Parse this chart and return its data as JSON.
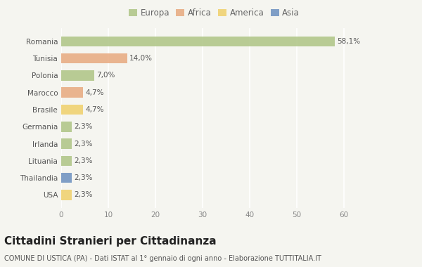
{
  "categories": [
    "Romania",
    "Tunisia",
    "Polonia",
    "Marocco",
    "Brasile",
    "Germania",
    "Irlanda",
    "Lituania",
    "Thailandia",
    "USA"
  ],
  "values": [
    58.1,
    14.0,
    7.0,
    4.7,
    4.7,
    2.3,
    2.3,
    2.3,
    2.3,
    2.3
  ],
  "labels": [
    "58,1%",
    "14,0%",
    "7,0%",
    "4,7%",
    "4,7%",
    "2,3%",
    "2,3%",
    "2,3%",
    "2,3%",
    "2,3%"
  ],
  "colors": [
    "#aec484",
    "#e8a97e",
    "#aec484",
    "#e8a97e",
    "#f0d06a",
    "#aec484",
    "#aec484",
    "#aec484",
    "#6a8fbf",
    "#f0d06a"
  ],
  "legend": [
    {
      "label": "Europa",
      "color": "#aec484"
    },
    {
      "label": "Africa",
      "color": "#e8a97e"
    },
    {
      "label": "America",
      "color": "#f0d06a"
    },
    {
      "label": "Asia",
      "color": "#6a8fbf"
    }
  ],
  "xlim": [
    0,
    65
  ],
  "xticks": [
    0,
    10,
    20,
    30,
    40,
    50,
    60
  ],
  "title": "Cittadini Stranieri per Cittadinanza",
  "subtitle": "COMUNE DI USTICA (PA) - Dati ISTAT al 1° gennaio di ogni anno - Elaborazione TUTTITALIA.IT",
  "bg_color": "#f5f5f0",
  "bar_alpha": 0.85,
  "grid_color": "#ffffff",
  "title_fontsize": 11,
  "subtitle_fontsize": 7,
  "label_fontsize": 7.5,
  "tick_fontsize": 7.5,
  "legend_fontsize": 8.5
}
